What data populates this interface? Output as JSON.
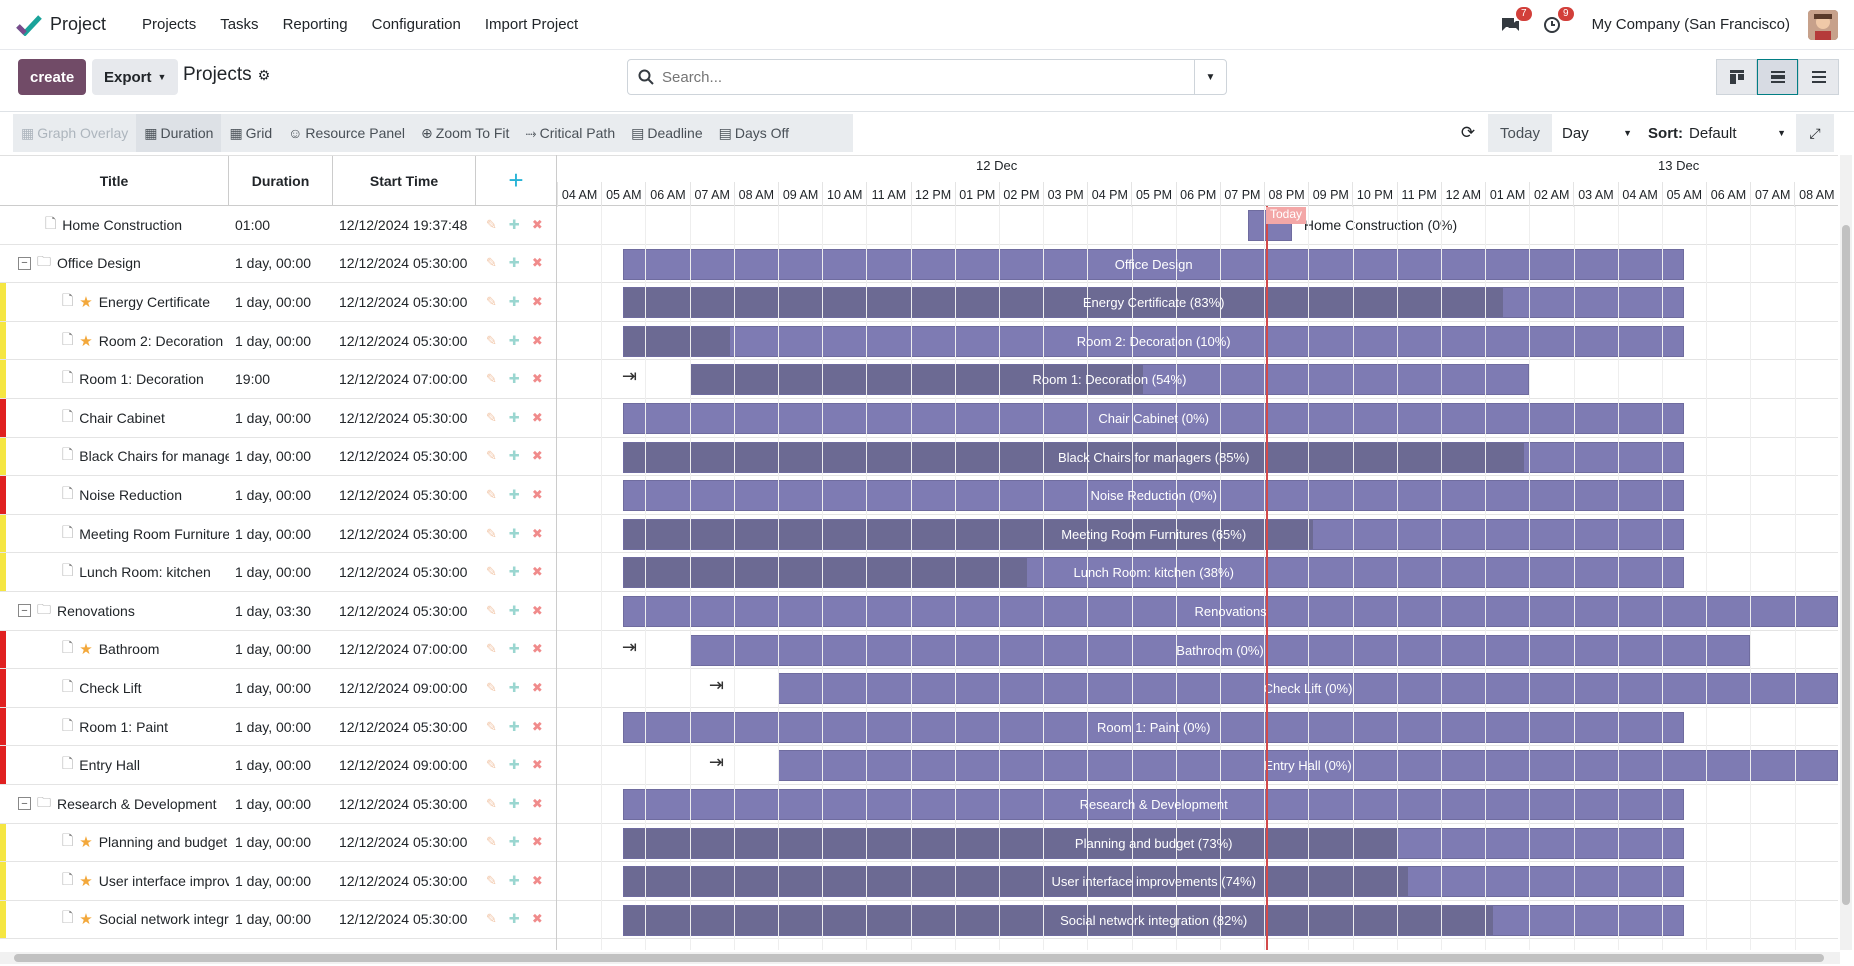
{
  "app": {
    "name": "Project"
  },
  "nav": {
    "items": [
      "Projects",
      "Tasks",
      "Reporting",
      "Configuration",
      "Import Project"
    ]
  },
  "systray": {
    "messages_count": "7",
    "activities_count": "9",
    "company": "My Company (San Francisco)"
  },
  "control": {
    "create_label": "create",
    "export_label": "Export",
    "title": "Projects",
    "search_placeholder": "Search..."
  },
  "toolbar": {
    "items": [
      "Graph Overlay",
      "Duration",
      "Grid",
      "Resource Panel",
      "Zoom To Fit",
      "Critical Path",
      "Deadline",
      "Days Off"
    ],
    "today_label": "Today",
    "scale": "Day",
    "sort_label": "Sort:",
    "sort_value": "Default"
  },
  "grid": {
    "columns": [
      "Title",
      "Duration",
      "Start Time"
    ]
  },
  "timeline": {
    "days": [
      "12 Dec",
      "13 Dec"
    ],
    "hours": [
      "04 AM",
      "05 AM",
      "06 AM",
      "07 AM",
      "08 AM",
      "09 AM",
      "10 AM",
      "11 AM",
      "12 PM",
      "01 PM",
      "02 PM",
      "03 PM",
      "04 PM",
      "05 PM",
      "06 PM",
      "07 PM",
      "08 PM",
      "09 PM",
      "10 PM",
      "11 PM",
      "12 AM",
      "01 AM",
      "02 AM",
      "03 AM",
      "04 AM",
      "05 AM",
      "06 AM",
      "07 AM",
      "08 AM"
    ],
    "today_label": "Today"
  },
  "tasks": [
    {
      "title": "Home Construction",
      "duration": "01:00",
      "start": "12/12/2024 19:37:48",
      "level": 0,
      "group": false,
      "star": false,
      "prio": "",
      "bar_label": "Home Construction (0%)",
      "progress": 0
    },
    {
      "title": "Office Design",
      "duration": "1 day, 00:00",
      "start": "12/12/2024 05:30:00",
      "level": 0,
      "group": true,
      "star": false,
      "prio": "",
      "bar_label": "Office Design",
      "progress": 0
    },
    {
      "title": "Energy Certificate",
      "duration": "1 day, 00:00",
      "start": "12/12/2024 05:30:00",
      "level": 1,
      "group": false,
      "star": true,
      "prio": "#f5e642",
      "bar_label": "Energy Certificate (83%)",
      "progress": 83
    },
    {
      "title": "Room 2: Decoration",
      "duration": "1 day, 00:00",
      "start": "12/12/2024 05:30:00",
      "level": 1,
      "group": false,
      "star": true,
      "prio": "#f5e642",
      "bar_label": "Room 2: Decoration (10%)",
      "progress": 10
    },
    {
      "title": "Room 1: Decoration",
      "duration": "19:00",
      "start": "12/12/2024 07:00:00",
      "level": 1,
      "group": false,
      "star": false,
      "prio": "#f5e642",
      "bar_label": "Room 1: Decoration (54%)",
      "progress": 54
    },
    {
      "title": "Chair Cabinet",
      "duration": "1 day, 00:00",
      "start": "12/12/2024 05:30:00",
      "level": 1,
      "group": false,
      "star": false,
      "prio": "#e02020",
      "bar_label": "Chair Cabinet (0%)",
      "progress": 0
    },
    {
      "title": "Black Chairs for managers",
      "duration": "1 day, 00:00",
      "start": "12/12/2024 05:30:00",
      "level": 1,
      "group": false,
      "star": false,
      "prio": "#f5e642",
      "bar_label": "Black Chairs for managers (85%)",
      "progress": 85
    },
    {
      "title": "Noise Reduction",
      "duration": "1 day, 00:00",
      "start": "12/12/2024 05:30:00",
      "level": 1,
      "group": false,
      "star": false,
      "prio": "#e02020",
      "bar_label": "Noise Reduction (0%)",
      "progress": 0
    },
    {
      "title": "Meeting Room Furnitures",
      "duration": "1 day, 00:00",
      "start": "12/12/2024 05:30:00",
      "level": 1,
      "group": false,
      "star": false,
      "prio": "#f5e642",
      "bar_label": "Meeting Room Furnitures (65%)",
      "progress": 65
    },
    {
      "title": "Lunch Room: kitchen",
      "duration": "1 day, 00:00",
      "start": "12/12/2024 05:30:00",
      "level": 1,
      "group": false,
      "star": false,
      "prio": "#f5e642",
      "bar_label": "Lunch Room: kitchen (38%)",
      "progress": 38
    },
    {
      "title": "Renovations",
      "duration": "1 day, 03:30",
      "start": "12/12/2024 05:30:00",
      "level": 0,
      "group": true,
      "star": false,
      "prio": "",
      "bar_label": "Renovations",
      "progress": 0
    },
    {
      "title": "Bathroom",
      "duration": "1 day, 00:00",
      "start": "12/12/2024 07:00:00",
      "level": 1,
      "group": false,
      "star": true,
      "prio": "#e02020",
      "bar_label": "Bathroom (0%)",
      "progress": 0
    },
    {
      "title": "Check Lift",
      "duration": "1 day, 00:00",
      "start": "12/12/2024 09:00:00",
      "level": 1,
      "group": false,
      "star": false,
      "prio": "#e02020",
      "bar_label": "Check Lift (0%)",
      "progress": 0
    },
    {
      "title": "Room 1: Paint",
      "duration": "1 day, 00:00",
      "start": "12/12/2024 05:30:00",
      "level": 1,
      "group": false,
      "star": false,
      "prio": "#e02020",
      "bar_label": "Room 1: Paint (0%)",
      "progress": 0
    },
    {
      "title": "Entry Hall",
      "duration": "1 day, 00:00",
      "start": "12/12/2024 09:00:00",
      "level": 1,
      "group": false,
      "star": false,
      "prio": "#e02020",
      "bar_label": "Entry Hall (0%)",
      "progress": 0
    },
    {
      "title": "Research & Development",
      "duration": "1 day, 00:00",
      "start": "12/12/2024 05:30:00",
      "level": 0,
      "group": true,
      "star": false,
      "prio": "",
      "bar_label": "Research & Development",
      "progress": 0
    },
    {
      "title": "Planning and budget",
      "duration": "1 day, 00:00",
      "start": "12/12/2024 05:30:00",
      "level": 1,
      "group": false,
      "star": true,
      "prio": "#f5e642",
      "bar_label": "Planning and budget (73%)",
      "progress": 73
    },
    {
      "title": "User interface improvements",
      "duration": "1 day, 00:00",
      "start": "12/12/2024 05:30:00",
      "level": 1,
      "group": false,
      "star": true,
      "prio": "#f5e642",
      "bar_label": "User interface improvements (74%)",
      "progress": 74
    },
    {
      "title": "Social network integration",
      "duration": "1 day, 00:00",
      "start": "12/12/2024 05:30:00",
      "level": 1,
      "group": false,
      "star": true,
      "prio": "#f5e642",
      "bar_label": "Social network integration (82%)",
      "progress": 82
    }
  ],
  "colors": {
    "brand": "#714b67",
    "bar": "#7e7bb3",
    "bar_progress": "#6c6a93",
    "today": "#d24a4a"
  }
}
